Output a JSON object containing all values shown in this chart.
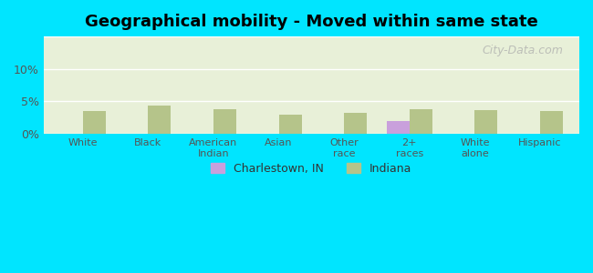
{
  "title": "Geographical mobility - Moved within same state",
  "categories": [
    "White",
    "Black",
    "American\nIndian",
    "Asian",
    "Other\nrace",
    "2+\nraces",
    "White\nalone",
    "Hispanic"
  ],
  "charlestown_values": [
    0.0,
    0.0,
    0.0,
    0.0,
    0.0,
    2.0,
    0.0,
    0.0
  ],
  "indiana_values": [
    3.5,
    4.3,
    3.8,
    2.9,
    3.2,
    3.8,
    3.6,
    3.5
  ],
  "charlestown_color": "#c9a0dc",
  "indiana_color": "#b5c48a",
  "background_outer": "#00e5ff",
  "background_inner_top": "#e8f0d8",
  "background_inner_bottom": "#d8e8c8",
  "ylim": [
    0,
    15
  ],
  "yticks": [
    0,
    5,
    10,
    15
  ],
  "ytick_labels": [
    "0%",
    "5%",
    "10%",
    ""
  ],
  "legend_charlestown": "Charlestown, IN",
  "legend_indiana": "Indiana",
  "watermark": "City-Data.com",
  "bar_width": 0.35
}
